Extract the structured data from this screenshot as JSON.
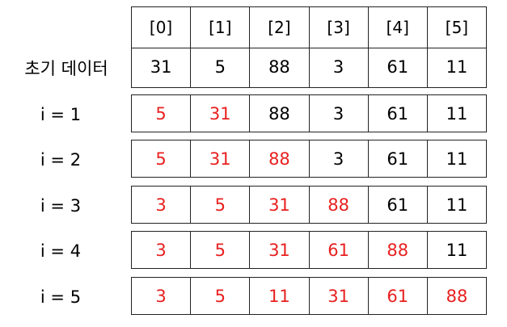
{
  "header": {
    "indices": [
      "[0]",
      "[1]",
      "[2]",
      "[3]",
      "[4]",
      "[5]"
    ]
  },
  "rows": [
    {
      "label": "초기 데이터",
      "values": [
        "31",
        "5",
        "88",
        "3",
        "61",
        "11"
      ],
      "highlighted": [
        false,
        false,
        false,
        false,
        false,
        false
      ]
    },
    {
      "label": "i = 1",
      "values": [
        "5",
        "31",
        "88",
        "3",
        "61",
        "11"
      ],
      "highlighted": [
        true,
        true,
        false,
        false,
        false,
        false
      ]
    },
    {
      "label": "i = 2",
      "values": [
        "5",
        "31",
        "88",
        "3",
        "61",
        "11"
      ],
      "highlighted": [
        true,
        true,
        true,
        false,
        false,
        false
      ]
    },
    {
      "label": "i = 3",
      "values": [
        "3",
        "5",
        "31",
        "88",
        "61",
        "11"
      ],
      "highlighted": [
        true,
        true,
        true,
        true,
        false,
        false
      ]
    },
    {
      "label": "i = 4",
      "values": [
        "3",
        "5",
        "31",
        "61",
        "88",
        "11"
      ],
      "highlighted": [
        true,
        true,
        true,
        true,
        true,
        false
      ]
    },
    {
      "label": "i = 5",
      "values": [
        "3",
        "5",
        "11",
        "31",
        "61",
        "88"
      ],
      "highlighted": [
        true,
        true,
        true,
        true,
        true,
        true
      ]
    }
  ],
  "colors": {
    "highlight": "#e8201f",
    "default": "#000000",
    "border": "#222222"
  }
}
